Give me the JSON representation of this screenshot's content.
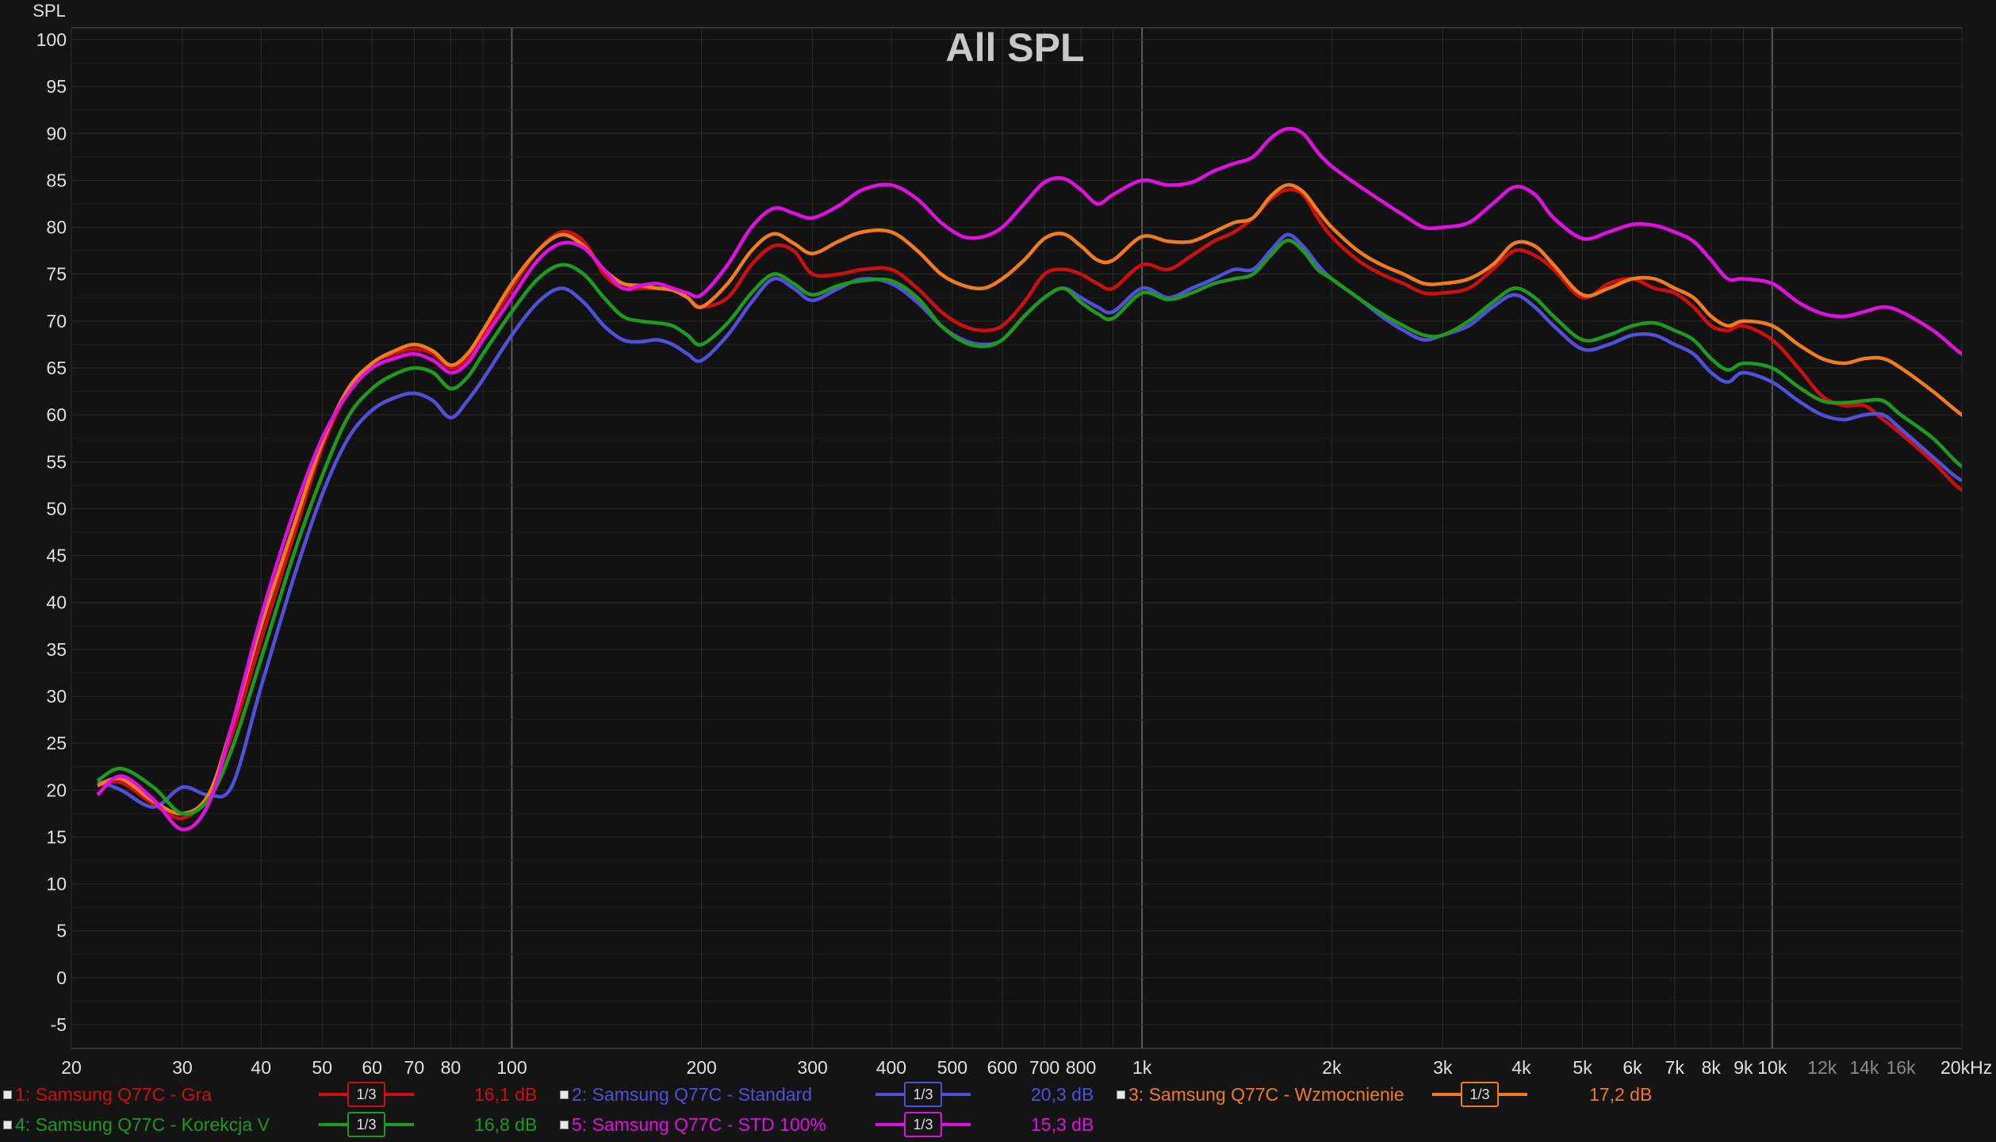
{
  "chart_data": {
    "type": "line",
    "title": "All SPL",
    "ylabel": "SPL",
    "xscale": "log",
    "xlim": [
      20,
      25000
    ],
    "ylim": [
      -8,
      103
    ],
    "grid": true,
    "yticks": [
      100,
      95,
      90,
      85,
      80,
      75,
      70,
      65,
      60,
      55,
      50,
      45,
      40,
      35,
      30,
      25,
      20,
      15,
      10,
      5,
      0,
      -5
    ],
    "ytick_labels": [
      "100",
      "95",
      "90",
      "85",
      "80",
      "75",
      "70",
      "65",
      "60",
      "55",
      "50",
      "45",
      "40",
      "35",
      "30",
      "25",
      "20",
      "15",
      "10",
      "5",
      "0",
      "-5"
    ],
    "xticks": [
      {
        "v": 20,
        "label": "20"
      },
      {
        "v": 30,
        "label": "30"
      },
      {
        "v": 40,
        "label": "40"
      },
      {
        "v": 50,
        "label": "50"
      },
      {
        "v": 60,
        "label": "60"
      },
      {
        "v": 70,
        "label": "70"
      },
      {
        "v": 80,
        "label": "80"
      },
      {
        "v": 100,
        "label": "100"
      },
      {
        "v": 200,
        "label": "200"
      },
      {
        "v": 300,
        "label": "300"
      },
      {
        "v": 400,
        "label": "400"
      },
      {
        "v": 500,
        "label": "500"
      },
      {
        "v": 600,
        "label": "600"
      },
      {
        "v": 700,
        "label": "700"
      },
      {
        "v": 800,
        "label": "800"
      },
      {
        "v": 1000,
        "label": "1k"
      },
      {
        "v": 2000,
        "label": "2k"
      },
      {
        "v": 3000,
        "label": "3k"
      },
      {
        "v": 4000,
        "label": "4k"
      },
      {
        "v": 5000,
        "label": "5k"
      },
      {
        "v": 6000,
        "label": "6k"
      },
      {
        "v": 7000,
        "label": "7k"
      },
      {
        "v": 8000,
        "label": "8k"
      },
      {
        "v": 9000,
        "label": "9k"
      },
      {
        "v": 10000,
        "label": "10k"
      },
      {
        "v": 12000,
        "label": "12k",
        "dim": true
      },
      {
        "v": 14000,
        "label": "14k",
        "dim": true
      },
      {
        "v": 16000,
        "label": "16k",
        "dim": true
      },
      {
        "v": 20000,
        "label": "20kHz"
      }
    ],
    "x": [
      22,
      24,
      27,
      30,
      33,
      36,
      40,
      45,
      50,
      55,
      60,
      65,
      70,
      75,
      80,
      85,
      90,
      100,
      110,
      120,
      130,
      140,
      150,
      160,
      170,
      180,
      190,
      200,
      220,
      240,
      260,
      280,
      300,
      330,
      360,
      400,
      440,
      480,
      520,
      560,
      600,
      650,
      700,
      750,
      800,
      850,
      900,
      1000,
      1100,
      1200,
      1300,
      1400,
      1500,
      1600,
      1700,
      1800,
      1900,
      2000,
      2200,
      2400,
      2600,
      2800,
      3000,
      3300,
      3600,
      3900,
      4200,
      4500,
      5000,
      5500,
      6000,
      6500,
      7000,
      7500,
      8000,
      8500,
      9000,
      10000,
      11000,
      12000,
      13000,
      14000,
      15000,
      16000,
      18000,
      20000,
      22000,
      25000
    ],
    "series": [
      {
        "name": "1: Samsung Q77C - Gra",
        "color": "#cc1010",
        "smoothing": "1/3",
        "delta": "16,1 dB",
        "values": [
          20.5,
          20.8,
          18.5,
          17.0,
          19.5,
          26,
          36,
          47,
          56.5,
          62.5,
          65.5,
          66.5,
          67,
          66.5,
          65,
          66,
          68.5,
          73.5,
          77.5,
          79.5,
          78.5,
          75,
          73.5,
          73.5,
          73.5,
          73.5,
          72.5,
          71.5,
          72.5,
          76,
          78,
          77.5,
          75,
          75,
          75.5,
          75.5,
          73.5,
          71,
          69.5,
          69,
          69.5,
          72,
          75,
          75.5,
          75,
          74,
          73.5,
          76,
          75.5,
          77,
          78.5,
          79.5,
          81,
          83,
          84,
          83.5,
          81,
          79,
          76.5,
          75,
          74,
          73,
          73,
          73.5,
          75.5,
          77.5,
          77,
          75.5,
          72.5,
          74,
          74.5,
          73.5,
          73,
          71.5,
          69.5,
          69,
          69.5,
          68,
          65,
          62,
          61,
          61,
          59.5,
          58,
          55,
          52,
          51.5,
          51
        ]
      },
      {
        "name": "2: Samsung Q77C - Standard",
        "color": "#5050d8",
        "smoothing": "1/3",
        "delta": "20,3 dB",
        "values": [
          21,
          20,
          18.2,
          20.3,
          19.5,
          20.5,
          31,
          42.5,
          51.5,
          57.5,
          60.5,
          61.8,
          62.3,
          61.5,
          59.7,
          61.5,
          63.8,
          68.5,
          72,
          73.5,
          72,
          69.5,
          68,
          67.8,
          68,
          67.5,
          66.5,
          65.8,
          68.5,
          72,
          74.5,
          73.5,
          72.2,
          73.5,
          74.5,
          74,
          72,
          69.5,
          68,
          67.5,
          68,
          70.5,
          72.5,
          73.5,
          72.5,
          71.5,
          71,
          73.5,
          72.5,
          73.5,
          74.5,
          75.5,
          75.5,
          77.5,
          79.2,
          78,
          76,
          74.5,
          72.5,
          70.5,
          69,
          68,
          68.5,
          69.5,
          71.5,
          72.8,
          71.5,
          69.5,
          67,
          67.5,
          68.5,
          68.5,
          67.5,
          66.5,
          64.5,
          63.5,
          64.5,
          63.5,
          61.5,
          60,
          59.5,
          60,
          60,
          58.5,
          55.5,
          53,
          52.5,
          52
        ]
      },
      {
        "name": "3: Samsung Q77C - Wzmocnienie",
        "color": "#f07c20",
        "smoothing": "1/3",
        "delta": "17,2 dB",
        "values": [
          20.5,
          21.2,
          18.8,
          17.5,
          19.5,
          27,
          37.5,
          48,
          57,
          62.8,
          65.5,
          66.8,
          67.5,
          66.8,
          65.3,
          66.5,
          69,
          74,
          77.5,
          79.2,
          78,
          75.5,
          74,
          73.8,
          73.5,
          73.3,
          72.5,
          71.5,
          74,
          77.5,
          79.3,
          78.3,
          77.2,
          78.5,
          79.5,
          79.5,
          77.5,
          75,
          73.8,
          73.5,
          74.5,
          76.5,
          78.8,
          79.3,
          78,
          76.5,
          76.5,
          79,
          78.5,
          78.5,
          79.5,
          80.5,
          81,
          83.3,
          84.5,
          83.8,
          81.8,
          80,
          77.5,
          76,
          75,
          74,
          74,
          74.5,
          76,
          78.3,
          78,
          76,
          72.8,
          73.5,
          74.5,
          74.5,
          73.5,
          72.5,
          70.5,
          69.5,
          70,
          69.5,
          67.5,
          66,
          65.5,
          66,
          66,
          65,
          62.5,
          60,
          58.5,
          57.5
        ]
      },
      {
        "name": "4: Samsung Q77C - Korekcja V",
        "color": "#1e9a1e",
        "smoothing": "1/3",
        "delta": "16,8 dB",
        "values": [
          21,
          22.3,
          20.3,
          17.5,
          19,
          24.5,
          34,
          45,
          53.5,
          59.8,
          62.8,
          64.3,
          65,
          64.5,
          62.8,
          64,
          66.5,
          71,
          74.5,
          76,
          75,
          72.5,
          70.5,
          70,
          69.8,
          69.5,
          68.5,
          67.5,
          69.8,
          73,
          75,
          74,
          72.8,
          73.8,
          74.3,
          74.3,
          72.5,
          69.5,
          67.8,
          67.3,
          68,
          70.5,
          72.5,
          73.5,
          72,
          70.8,
          70.3,
          73,
          72.3,
          73,
          74,
          74.5,
          75,
          77,
          78.6,
          77.5,
          75.5,
          74.5,
          72.5,
          70.8,
          69.5,
          68.5,
          68.5,
          70,
          72,
          73.5,
          72.5,
          70.5,
          68,
          68.5,
          69.5,
          69.8,
          69,
          68,
          66,
          64.8,
          65.5,
          65,
          63,
          61.5,
          61.3,
          61.5,
          61.5,
          60,
          57.5,
          54.5,
          53.5,
          53
        ]
      },
      {
        "name": "5: Samsung Q77C - STD 100%",
        "color": "#e010e0",
        "smoothing": "1/3",
        "delta": "15,3 dB",
        "values": [
          19.5,
          21.5,
          19,
          15.8,
          18.5,
          27,
          38.5,
          49.5,
          57.5,
          62.3,
          65,
          66,
          66.5,
          65.8,
          64.5,
          65.5,
          68,
          72.5,
          76.5,
          78.3,
          77.8,
          75.5,
          73.5,
          73.8,
          74,
          73.5,
          73,
          72.8,
          76,
          80,
          82,
          81.5,
          81,
          82.3,
          84,
          84.5,
          83,
          80.5,
          79,
          79,
          80,
          82.5,
          84.8,
          85.2,
          84,
          82.5,
          83.5,
          85,
          84.5,
          84.8,
          86,
          86.8,
          87.5,
          89.5,
          90.5,
          90,
          88,
          86.5,
          84.5,
          82.8,
          81.3,
          80,
          80,
          80.5,
          82.5,
          84.3,
          83.5,
          81,
          78.8,
          79.5,
          80.3,
          80.2,
          79.5,
          78.5,
          76.5,
          74.5,
          74.5,
          74,
          72,
          70.8,
          70.5,
          71,
          71.5,
          71,
          69,
          66.5,
          65,
          64
        ]
      }
    ]
  }
}
